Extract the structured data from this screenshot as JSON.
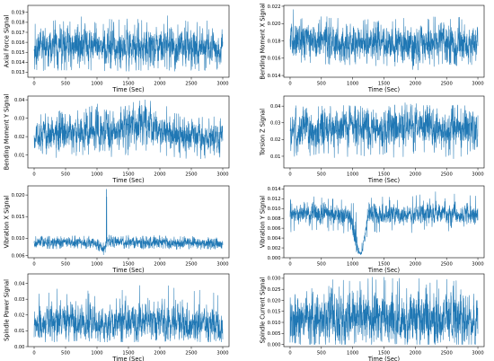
{
  "chart_data": [
    {
      "type": "line",
      "title": "",
      "xlabel": "Time (Sec)",
      "ylabel": "Axial Force Signal",
      "xlim": [
        -100,
        3100
      ],
      "ylim": [
        0.0125,
        0.0197
      ],
      "xticks": [
        0,
        500,
        1000,
        1500,
        2000,
        2500,
        3000
      ],
      "xtick_labels": [
        "0",
        "500",
        "1000",
        "1500",
        "2000",
        "2500",
        "3000"
      ],
      "yticks": [
        0.013,
        0.014,
        0.015,
        0.016,
        0.017,
        0.018,
        0.019
      ],
      "ytick_labels": [
        "0.013",
        "0.014",
        "0.015",
        "0.016",
        "0.017",
        "0.018",
        "0.019"
      ],
      "series": [
        {
          "color": "#1f77b4",
          "x": [
            0,
            250,
            500,
            750,
            1000,
            1250,
            1500,
            1750,
            2000,
            2250,
            2500,
            2750,
            3000
          ],
          "mean": [
            0.0155,
            0.0156,
            0.0155,
            0.0157,
            0.0154,
            0.0155,
            0.0156,
            0.0155,
            0.0156,
            0.0155,
            0.0154,
            0.0155,
            0.0155
          ],
          "band": [
            0.0013,
            0.0014,
            0.0013,
            0.0014,
            0.0012,
            0.0013,
            0.0014,
            0.0013,
            0.0014,
            0.0013,
            0.0013,
            0.0013,
            0.0013
          ],
          "min": [
            0.0131,
            0.0132,
            0.0132,
            0.0133,
            0.0131,
            0.0132,
            0.0131,
            0.0132,
            0.0132,
            0.0131,
            0.0132,
            0.0131,
            0.0132
          ],
          "max": [
            0.0182,
            0.0185,
            0.0183,
            0.0188,
            0.0181,
            0.0184,
            0.0186,
            0.0183,
            0.019,
            0.0184,
            0.0182,
            0.0183,
            0.0184
          ]
        }
      ]
    },
    {
      "type": "line",
      "title": "",
      "xlabel": "Time (Sec)",
      "ylabel": "Bending Moment X Signal",
      "xlim": [
        -100,
        3100
      ],
      "ylim": [
        0.0138,
        0.0221
      ],
      "xticks": [
        0,
        500,
        1000,
        1500,
        2000,
        2500,
        3000
      ],
      "xtick_labels": [
        "0",
        "500",
        "1000",
        "1500",
        "2000",
        "2500",
        "3000"
      ],
      "yticks": [
        0.014,
        0.016,
        0.018,
        0.02,
        0.022
      ],
      "ytick_labels": [
        "0.014",
        "0.016",
        "0.018",
        "0.020",
        "0.022"
      ],
      "series": [
        {
          "color": "#1f77b4",
          "x": [
            0,
            250,
            500,
            750,
            1000,
            1250,
            1500,
            1750,
            2000,
            2250,
            2500,
            2750,
            3000
          ],
          "mean": [
            0.018,
            0.0181,
            0.0178,
            0.0179,
            0.0176,
            0.0177,
            0.0176,
            0.0176,
            0.0174,
            0.0177,
            0.0178,
            0.0177,
            0.0178
          ],
          "band": [
            0.0015,
            0.0016,
            0.0014,
            0.0015,
            0.0014,
            0.0014,
            0.0014,
            0.0015,
            0.0015,
            0.0014,
            0.0015,
            0.0014,
            0.0015
          ],
          "min": [
            0.0152,
            0.0154,
            0.015,
            0.0152,
            0.015,
            0.0151,
            0.015,
            0.0151,
            0.0144,
            0.015,
            0.0152,
            0.0151,
            0.0152
          ],
          "max": [
            0.0217,
            0.0213,
            0.0208,
            0.021,
            0.0204,
            0.0206,
            0.0205,
            0.0207,
            0.0204,
            0.0209,
            0.0211,
            0.0208,
            0.0212
          ]
        }
      ]
    },
    {
      "type": "line",
      "title": "",
      "xlabel": "Time (Sec)",
      "ylabel": "Bending Moment Y Signal",
      "xlim": [
        -100,
        3100
      ],
      "ylim": [
        0.003,
        0.042
      ],
      "xticks": [
        0,
        500,
        1000,
        1500,
        2000,
        2500,
        3000
      ],
      "xtick_labels": [
        "0",
        "500",
        "1000",
        "1500",
        "2000",
        "2500",
        "3000"
      ],
      "yticks": [
        0.01,
        0.02,
        0.03,
        0.04
      ],
      "ytick_labels": [
        "0.01",
        "0.02",
        "0.03",
        "0.04"
      ],
      "series": [
        {
          "color": "#1f77b4",
          "x": [
            0,
            250,
            500,
            750,
            1000,
            1250,
            1500,
            1750,
            2000,
            2250,
            2500,
            2750,
            3000
          ],
          "mean": [
            0.019,
            0.021,
            0.022,
            0.023,
            0.024,
            0.023,
            0.025,
            0.027,
            0.024,
            0.021,
            0.02,
            0.019,
            0.02
          ],
          "band": [
            0.006,
            0.007,
            0.007,
            0.007,
            0.008,
            0.007,
            0.008,
            0.008,
            0.007,
            0.006,
            0.006,
            0.006,
            0.006
          ],
          "min": [
            0.008,
            0.008,
            0.009,
            0.01,
            0.01,
            0.009,
            0.01,
            0.011,
            0.01,
            0.008,
            0.008,
            0.008,
            0.009
          ],
          "max": [
            0.031,
            0.034,
            0.035,
            0.036,
            0.038,
            0.035,
            0.038,
            0.04,
            0.039,
            0.033,
            0.032,
            0.031,
            0.032
          ]
        }
      ]
    },
    {
      "type": "line",
      "title": "",
      "xlabel": "Time (Sec)",
      "ylabel": "Torsion Z Signal",
      "xlim": [
        -100,
        3100
      ],
      "ylim": [
        0.003,
        0.046
      ],
      "xticks": [
        0,
        500,
        1000,
        1500,
        2000,
        2500,
        3000
      ],
      "xtick_labels": [
        "0",
        "500",
        "1000",
        "1500",
        "2000",
        "2500",
        "3000"
      ],
      "yticks": [
        0.01,
        0.02,
        0.03,
        0.04
      ],
      "ytick_labels": [
        "0.01",
        "0.02",
        "0.03",
        "0.04"
      ],
      "series": [
        {
          "color": "#1f77b4",
          "x": [
            0,
            250,
            500,
            750,
            1000,
            1250,
            1500,
            1750,
            2000,
            2250,
            2500,
            2750,
            3000
          ],
          "mean": [
            0.024,
            0.026,
            0.026,
            0.027,
            0.028,
            0.026,
            0.027,
            0.028,
            0.03,
            0.027,
            0.026,
            0.027,
            0.026
          ],
          "band": [
            0.008,
            0.008,
            0.008,
            0.008,
            0.008,
            0.008,
            0.008,
            0.008,
            0.008,
            0.008,
            0.008,
            0.008,
            0.008
          ],
          "min": [
            0.008,
            0.009,
            0.01,
            0.009,
            0.01,
            0.009,
            0.01,
            0.009,
            0.011,
            0.009,
            0.008,
            0.009,
            0.009
          ],
          "max": [
            0.04,
            0.041,
            0.04,
            0.04,
            0.041,
            0.039,
            0.04,
            0.041,
            0.044,
            0.04,
            0.04,
            0.041,
            0.04
          ]
        }
      ]
    },
    {
      "type": "line",
      "title": "",
      "xlabel": "Time (Sec)",
      "ylabel": "Vibration X Signal",
      "xlim": [
        -100,
        3100
      ],
      "ylim": [
        0.0055,
        0.0221
      ],
      "xticks": [
        0,
        500,
        1000,
        1500,
        2000,
        2500,
        3000
      ],
      "xtick_labels": [
        "0",
        "500",
        "1000",
        "1500",
        "2000",
        "2500",
        "3000"
      ],
      "yticks": [
        0.006,
        0.01,
        0.015,
        0.02
      ],
      "ytick_labels": [
        "0.006",
        "0.010",
        "0.015",
        "0.020"
      ],
      "series": [
        {
          "color": "#1f77b4",
          "x": [
            0,
            250,
            500,
            750,
            1000,
            1050,
            1100,
            1150,
            1200,
            1250,
            1500,
            1750,
            2000,
            2250,
            2500,
            2750,
            3000
          ],
          "mean": [
            0.0088,
            0.009,
            0.0089,
            0.009,
            0.0088,
            0.008,
            0.007,
            0.0085,
            0.01,
            0.0092,
            0.0091,
            0.0089,
            0.0092,
            0.0088,
            0.0089,
            0.0088,
            0.0087
          ],
          "band": [
            0.0009,
            0.0009,
            0.0009,
            0.0009,
            0.0009,
            0.0009,
            0.0008,
            0.0009,
            0.001,
            0.0009,
            0.0009,
            0.0009,
            0.0009,
            0.0009,
            0.0009,
            0.0009,
            0.0009
          ],
          "min": [
            0.0074,
            0.0076,
            0.0075,
            0.0077,
            0.0074,
            0.0068,
            0.006,
            0.007,
            0.0082,
            0.0077,
            0.0076,
            0.0075,
            0.0077,
            0.0074,
            0.0075,
            0.0074,
            0.0073
          ],
          "max": [
            0.0104,
            0.0106,
            0.0105,
            0.0107,
            0.0104,
            0.0098,
            0.0088,
            0.0215,
            0.0118,
            0.0108,
            0.0107,
            0.0105,
            0.0108,
            0.0104,
            0.0105,
            0.0104,
            0.0103
          ]
        }
      ]
    },
    {
      "type": "line",
      "title": "",
      "xlabel": "Time (Sec)",
      "ylabel": "Vibration Y Signal",
      "xlim": [
        -100,
        3100
      ],
      "ylim": [
        0.0,
        0.0146
      ],
      "xticks": [
        0,
        500,
        1000,
        1500,
        2000,
        2500,
        3000
      ],
      "xtick_labels": [
        "0",
        "500",
        "1000",
        "1500",
        "2000",
        "2500",
        "3000"
      ],
      "yticks": [
        0.0,
        0.002,
        0.004,
        0.006,
        0.008,
        0.01,
        0.012,
        0.014
      ],
      "ytick_labels": [
        "0.000",
        "0.002",
        "0.004",
        "0.006",
        "0.008",
        "0.010",
        "0.012",
        "0.014"
      ],
      "series": [
        {
          "color": "#1f77b4",
          "x": [
            0,
            250,
            500,
            750,
            950,
            1050,
            1100,
            1150,
            1250,
            1500,
            1750,
            2000,
            2250,
            2500,
            2750,
            3000
          ],
          "mean": [
            0.0088,
            0.0092,
            0.0089,
            0.009,
            0.0084,
            0.004,
            0.0008,
            0.001,
            0.0088,
            0.009,
            0.0088,
            0.0089,
            0.0091,
            0.009,
            0.0089,
            0.0088
          ],
          "band": [
            0.0014,
            0.0015,
            0.0014,
            0.0014,
            0.0014,
            0.0018,
            0.0003,
            0.0003,
            0.0014,
            0.0014,
            0.0014,
            0.0014,
            0.0015,
            0.0015,
            0.0014,
            0.0014
          ],
          "min": [
            0.005,
            0.0055,
            0.0052,
            0.0053,
            0.0048,
            0.0004,
            0.0003,
            0.0004,
            0.005,
            0.0052,
            0.005,
            0.0051,
            0.0053,
            0.0052,
            0.005,
            0.005
          ],
          "max": [
            0.012,
            0.013,
            0.0122,
            0.0124,
            0.0118,
            0.011,
            0.002,
            0.003,
            0.0125,
            0.013,
            0.0124,
            0.0132,
            0.0138,
            0.0135,
            0.0128,
            0.0125
          ]
        }
      ]
    },
    {
      "type": "line",
      "title": "",
      "xlabel": "Time (Sec)",
      "ylabel": "Spindle Power Signal",
      "xlim": [
        -100,
        3100
      ],
      "ylim": [
        0.0,
        0.046
      ],
      "xticks": [
        0,
        500,
        1000,
        1500,
        2000,
        2500,
        3000
      ],
      "xtick_labels": [
        "0",
        "500",
        "1000",
        "1500",
        "2000",
        "2500",
        "3000"
      ],
      "yticks": [
        0.0,
        0.01,
        0.02,
        0.03,
        0.04
      ],
      "ytick_labels": [
        "0.00",
        "0.01",
        "0.02",
        "0.03",
        "0.04"
      ],
      "series": [
        {
          "color": "#1f77b4",
          "x": [
            0,
            250,
            500,
            750,
            1000,
            1250,
            1500,
            1750,
            2000,
            2250,
            2500,
            2750,
            3000
          ],
          "mean": [
            0.014,
            0.015,
            0.015,
            0.016,
            0.014,
            0.015,
            0.015,
            0.016,
            0.015,
            0.016,
            0.015,
            0.014,
            0.014
          ],
          "band": [
            0.007,
            0.008,
            0.008,
            0.008,
            0.007,
            0.008,
            0.008,
            0.008,
            0.008,
            0.008,
            0.008,
            0.007,
            0.007
          ],
          "min": [
            0.003,
            0.003,
            0.003,
            0.004,
            0.003,
            0.003,
            0.003,
            0.003,
            0.003,
            0.004,
            0.003,
            0.003,
            0.003
          ],
          "max": [
            0.034,
            0.037,
            0.036,
            0.038,
            0.034,
            0.036,
            0.037,
            0.044,
            0.038,
            0.04,
            0.037,
            0.035,
            0.036
          ]
        }
      ]
    },
    {
      "type": "line",
      "title": "",
      "xlabel": "Time (Sec)",
      "ylabel": "Spindle Current Signal",
      "xlim": [
        -100,
        3100
      ],
      "ylim": [
        -0.001,
        0.032
      ],
      "xticks": [
        0,
        500,
        1000,
        1500,
        2000,
        2500,
        3000
      ],
      "xtick_labels": [
        "0",
        "500",
        "1000",
        "1500",
        "2000",
        "2500",
        "3000"
      ],
      "yticks": [
        0.0,
        0.005,
        0.01,
        0.015,
        0.02,
        0.025,
        0.03
      ],
      "ytick_labels": [
        "0.000",
        "0.005",
        "0.010",
        "0.015",
        "0.020",
        "0.025",
        "0.030"
      ],
      "series": [
        {
          "color": "#1f77b4",
          "x": [
            0,
            250,
            500,
            750,
            1000,
            1250,
            1500,
            1750,
            2000,
            2250,
            2500,
            2750,
            3000
          ],
          "mean": [
            0.011,
            0.012,
            0.011,
            0.012,
            0.011,
            0.012,
            0.012,
            0.011,
            0.012,
            0.011,
            0.012,
            0.011,
            0.011
          ],
          "band": [
            0.008,
            0.008,
            0.008,
            0.008,
            0.008,
            0.008,
            0.008,
            0.008,
            0.008,
            0.008,
            0.008,
            0.008,
            0.008
          ],
          "min": [
            0.0,
            0.0,
            0.0,
            0.0,
            0.0,
            0.0,
            0.0,
            0.0,
            0.0,
            0.0,
            0.0,
            0.0,
            0.0
          ],
          "max": [
            0.03,
            0.031,
            0.03,
            0.031,
            0.029,
            0.031,
            0.031,
            0.03,
            0.031,
            0.03,
            0.031,
            0.03,
            0.03
          ]
        }
      ]
    }
  ]
}
